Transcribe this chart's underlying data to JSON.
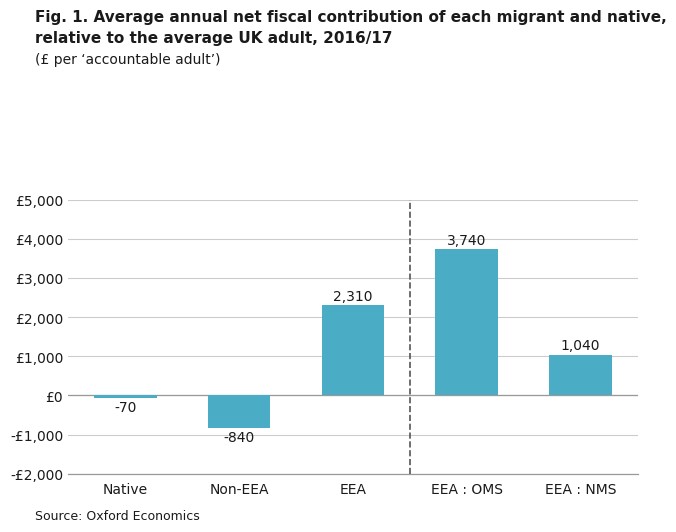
{
  "categories": [
    "Native",
    "Non-EEA",
    "EEA",
    "EEA : OMS",
    "EEA : NMS"
  ],
  "values": [
    -70,
    -840,
    2310,
    3740,
    1040
  ],
  "bar_color": "#4BACC6",
  "bar_width": 0.55,
  "ylim": [
    -2000,
    5000
  ],
  "yticks": [
    -2000,
    -1000,
    0,
    1000,
    2000,
    3000,
    4000,
    5000
  ],
  "ytick_labels": [
    "-£2,000",
    "-£1,000",
    "£0",
    "£1,000",
    "£2,000",
    "£3,000",
    "£4,000",
    "£5,000"
  ],
  "value_labels": [
    "-70",
    "-840",
    "2,310",
    "3,740",
    "1,040"
  ],
  "title_line1": "Fig. 1. Average annual net fiscal contribution of each migrant and native,",
  "title_line2": "relative to the average UK adult, 2016/17",
  "subtitle": "(£ per ‘accountable adult’)",
  "source": "Source: Oxford Economics",
  "dashed_line_x": 2.5,
  "background_color": "#ffffff",
  "grid_color": "#cccccc",
  "text_color": "#1a1a1a",
  "title_fontsize": 11,
  "subtitle_fontsize": 10,
  "tick_fontsize": 10,
  "label_fontsize": 10,
  "source_fontsize": 9
}
